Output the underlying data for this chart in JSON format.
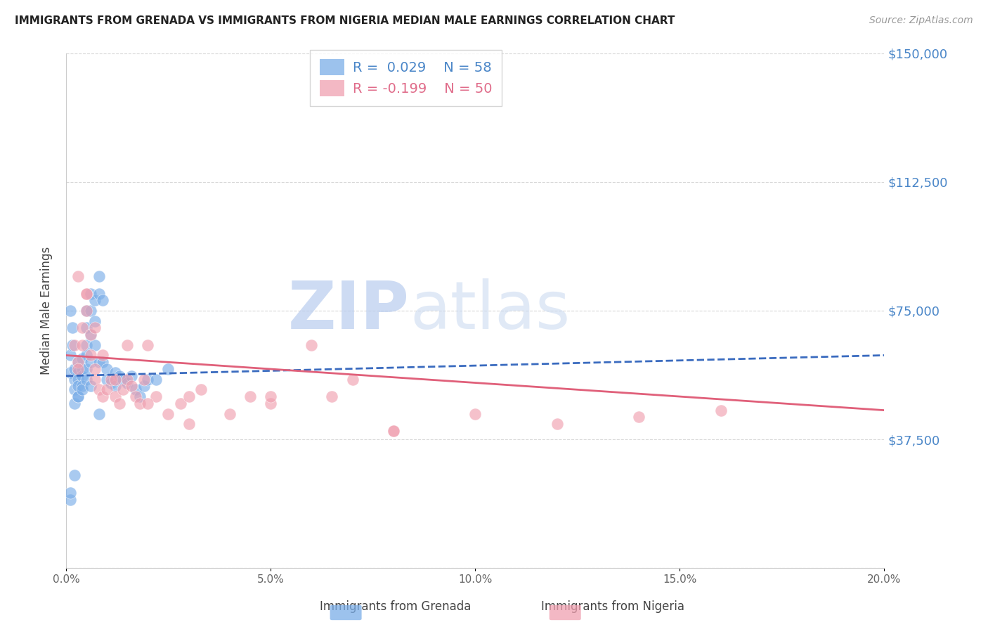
{
  "title": "IMMIGRANTS FROM GRENADA VS IMMIGRANTS FROM NIGERIA MEDIAN MALE EARNINGS CORRELATION CHART",
  "source": "Source: ZipAtlas.com",
  "ylabel": "Median Male Earnings",
  "x_min": 0.0,
  "x_max": 0.2,
  "y_min": 0,
  "y_max": 150000,
  "yticks": [
    0,
    37500,
    75000,
    112500,
    150000
  ],
  "ytick_labels": [
    "",
    "$37,500",
    "$75,000",
    "$112,500",
    "$150,000"
  ],
  "xticks": [
    0.0,
    0.05,
    0.1,
    0.15,
    0.2
  ],
  "xtick_labels": [
    "0.0%",
    "5.0%",
    "10.0%",
    "15.0%",
    "20.0%"
  ],
  "background_color": "#ffffff",
  "grid_color": "#d8d8d8",
  "grenada_color": "#7baee8",
  "nigeria_color": "#f0a0b0",
  "grenada_line_color": "#3a6bbf",
  "nigeria_line_color": "#e0607a",
  "grenada_scatter": {
    "x": [
      0.001,
      0.001,
      0.001,
      0.0015,
      0.0015,
      0.002,
      0.002,
      0.002,
      0.002,
      0.003,
      0.003,
      0.003,
      0.003,
      0.003,
      0.004,
      0.004,
      0.004,
      0.004,
      0.005,
      0.005,
      0.005,
      0.005,
      0.005,
      0.006,
      0.006,
      0.006,
      0.006,
      0.007,
      0.007,
      0.007,
      0.008,
      0.008,
      0.008,
      0.009,
      0.009,
      0.01,
      0.01,
      0.011,
      0.012,
      0.012,
      0.013,
      0.014,
      0.015,
      0.016,
      0.017,
      0.018,
      0.019,
      0.02,
      0.022,
      0.025,
      0.001,
      0.001,
      0.002,
      0.003,
      0.004,
      0.005,
      0.006,
      0.008
    ],
    "y": [
      57000,
      62000,
      75000,
      70000,
      65000,
      55000,
      58000,
      52000,
      48000,
      60000,
      57000,
      55000,
      53000,
      50000,
      61000,
      58000,
      56000,
      53000,
      75000,
      70000,
      65000,
      62000,
      58000,
      80000,
      75000,
      68000,
      60000,
      78000,
      72000,
      65000,
      85000,
      80000,
      60000,
      78000,
      60000,
      58000,
      55000,
      54000,
      57000,
      53000,
      56000,
      55000,
      54000,
      56000,
      52000,
      50000,
      53000,
      55000,
      55000,
      58000,
      20000,
      22000,
      27000,
      50000,
      52000,
      55000,
      53000,
      45000
    ]
  },
  "nigeria_scatter": {
    "x": [
      0.002,
      0.003,
      0.003,
      0.004,
      0.004,
      0.005,
      0.005,
      0.006,
      0.006,
      0.007,
      0.007,
      0.008,
      0.009,
      0.01,
      0.011,
      0.012,
      0.013,
      0.014,
      0.015,
      0.016,
      0.017,
      0.018,
      0.019,
      0.02,
      0.022,
      0.025,
      0.028,
      0.03,
      0.033,
      0.04,
      0.045,
      0.05,
      0.06,
      0.065,
      0.07,
      0.08,
      0.1,
      0.12,
      0.14,
      0.16,
      0.003,
      0.005,
      0.007,
      0.009,
      0.012,
      0.015,
      0.02,
      0.03,
      0.05,
      0.08
    ],
    "y": [
      65000,
      60000,
      58000,
      70000,
      65000,
      80000,
      75000,
      68000,
      62000,
      55000,
      58000,
      52000,
      50000,
      52000,
      55000,
      50000,
      48000,
      52000,
      55000,
      53000,
      50000,
      48000,
      55000,
      65000,
      50000,
      45000,
      48000,
      50000,
      52000,
      45000,
      50000,
      48000,
      65000,
      50000,
      55000,
      40000,
      45000,
      42000,
      44000,
      46000,
      85000,
      80000,
      70000,
      62000,
      55000,
      65000,
      48000,
      42000,
      50000,
      40000
    ]
  },
  "watermark_zip": "ZIP",
  "watermark_atlas": "atlas",
  "watermark_color": "#c5d8f0"
}
